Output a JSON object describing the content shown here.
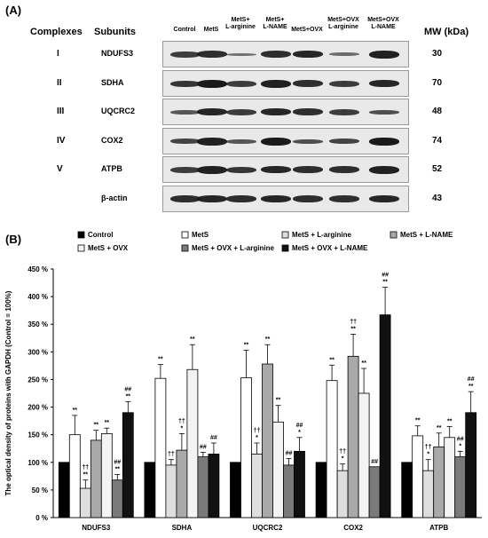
{
  "panel_a": {
    "label": "(A)",
    "col_complexes": "Complexes",
    "col_subunits": "Subunits",
    "col_mw": "MW (kDa)",
    "lanes": [
      {
        "l1": "Control",
        "l2": ""
      },
      {
        "l1": "MetS",
        "l2": ""
      },
      {
        "l1": "MetS+",
        "l2": "L-arginine"
      },
      {
        "l1": "MetS+",
        "l2": "L-NAME"
      },
      {
        "l1": "MetS+OVX",
        "l2": ""
      },
      {
        "l1": "MetS+OVX",
        "l2": "L-arginine"
      },
      {
        "l1": "MetS+OVX",
        "l2": "L-NAME"
      }
    ],
    "rows": [
      {
        "complex": "I",
        "subunit": "NDUFS3",
        "mw": "30"
      },
      {
        "complex": "II",
        "subunit": "SDHA",
        "mw": "70"
      },
      {
        "complex": "III",
        "subunit": "UQCRC2",
        "mw": "48"
      },
      {
        "complex": "IV",
        "subunit": "COX2",
        "mw": "74"
      },
      {
        "complex": "V",
        "subunit": "ATPB",
        "mw": "52"
      },
      {
        "complex": "",
        "subunit": "β-actin",
        "mw": "43"
      }
    ]
  },
  "panel_b": {
    "label": "(B)"
  },
  "chart_data": {
    "type": "bar",
    "ylabel": "The optical density of proteins with GAPDH (Control = 100%)",
    "xlabel": "",
    "ylim": [
      0,
      450
    ],
    "yticks": [
      "0 %",
      "50 %",
      "100 %",
      "150 %",
      "200 %",
      "250 %",
      "300 %",
      "350 %",
      "400 %",
      "450 %"
    ],
    "categories": [
      "NDUFS3",
      "SDHA",
      "UQCRC2",
      "COX2",
      "ATPB"
    ],
    "legend_placement": "top",
    "series": [
      {
        "name": "Control",
        "color": "#000000",
        "values": [
          100,
          100,
          100,
          100,
          100
        ],
        "errors": [
          0,
          0,
          0,
          0,
          0
        ],
        "marks": [
          "",
          "",
          "",
          "",
          ""
        ]
      },
      {
        "name": "MetS",
        "color": "#ffffff",
        "values": [
          150,
          252,
          253,
          248,
          148
        ],
        "errors": [
          35,
          25,
          50,
          28,
          18
        ],
        "marks": [
          "**",
          "**",
          "**",
          "**",
          "**"
        ]
      },
      {
        "name": "MetS + L-arginine",
        "color": "#dedede",
        "values": [
          53,
          95,
          115,
          85,
          85
        ],
        "errors": [
          15,
          10,
          20,
          12,
          20
        ],
        "marks": [
          "††\n**",
          "††",
          "††\n*",
          "††\n*",
          "††\n*"
        ]
      },
      {
        "name": "MetS + L-NAME",
        "color": "#a9a9a9",
        "values": [
          140,
          122,
          278,
          292,
          128
        ],
        "errors": [
          18,
          30,
          35,
          40,
          25
        ],
        "marks": [
          "**",
          "††\n*",
          "**",
          "††\n**",
          "**"
        ]
      },
      {
        "name": "MetS + OVX",
        "color": "#f3f3f3",
        "values": [
          152,
          268,
          173,
          225,
          145
        ],
        "errors": [
          10,
          45,
          30,
          45,
          20
        ],
        "marks": [
          "**",
          "**",
          "**",
          "**",
          "**"
        ]
      },
      {
        "name": "MetS + OVX + L-arginine",
        "color": "#7a7a7a",
        "values": [
          68,
          110,
          95,
          92,
          110
        ],
        "errors": [
          10,
          8,
          12,
          0,
          10
        ],
        "marks": [
          "##\n**",
          "##",
          "##",
          "##",
          "##\n*"
        ]
      },
      {
        "name": "MetS + OVX + L-NAME",
        "color": "#111111",
        "values": [
          190,
          115,
          120,
          367,
          190
        ],
        "errors": [
          20,
          20,
          25,
          50,
          38
        ],
        "marks": [
          "##\n**",
          "##",
          "##\n*",
          "##\n**",
          "##\n**"
        ]
      }
    ]
  }
}
